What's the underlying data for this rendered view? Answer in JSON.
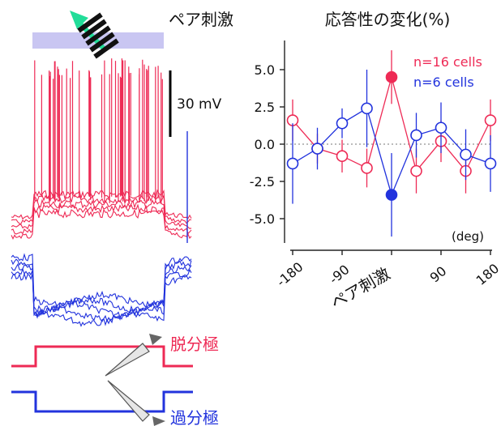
{
  "colors": {
    "red": "#ee2a55",
    "blue": "#2233dd",
    "stim_bar": "#c9c6f2",
    "arrow": "#22dd99",
    "grating": "#111111",
    "axis": "#222222",
    "zero_line": "#777777",
    "electrode": "#666666"
  },
  "left_panel": {
    "stimulus_label": "ペア刺激",
    "scale_label": "30 mV",
    "depolarization_label": "脱分極",
    "hyperpolarization_label": "過分極",
    "stimulus_icons": [
      "grating-icon",
      "arrow-icon"
    ]
  },
  "chart_data": {
    "type": "line",
    "title": "応答性の変化(%)",
    "xlabel": "ペア刺激",
    "ylabel": "",
    "x_unit": "(deg)",
    "x_ticks": [
      "-180",
      "-90",
      "-90",
      "0",
      "90",
      "180"
    ],
    "y_ticks": [
      "5.0",
      "2.5",
      "0.0",
      "-2.5",
      "-5.0"
    ],
    "xlim": [
      -180,
      180
    ],
    "ylim": [
      -6.6,
      6.6
    ],
    "zero_line": "dotted",
    "legend_position": "top-right",
    "x": [
      -180,
      -135,
      -90,
      -45,
      0,
      45,
      90,
      135,
      180
    ],
    "series": [
      {
        "name": "n=16 cells",
        "color": "#ee2a55",
        "values": [
          1.6,
          -0.3,
          -0.8,
          -1.6,
          4.5,
          -1.8,
          0.2,
          -1.8,
          1.6
        ],
        "errors": [
          1.4,
          1.0,
          1.1,
          1.3,
          1.8,
          1.5,
          1.4,
          1.5,
          1.4
        ],
        "highlight_index": 4
      },
      {
        "name": "n=6 cells",
        "color": "#2233dd",
        "values": [
          -1.3,
          -0.3,
          1.4,
          2.4,
          -3.4,
          0.6,
          1.1,
          -0.7,
          -1.3
        ],
        "errors": [
          2.7,
          1.4,
          1.0,
          2.6,
          2.8,
          1.5,
          1.7,
          1.7,
          1.9
        ],
        "highlight_index": 4
      }
    ]
  }
}
